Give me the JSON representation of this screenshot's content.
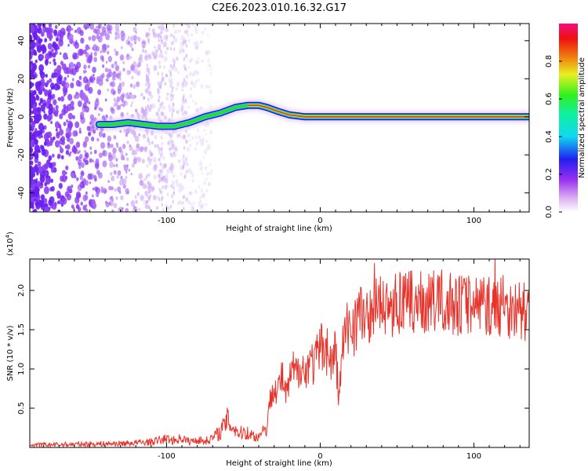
{
  "title": "C2E6.2023.010.16.32.G17",
  "colors": {
    "snr_line": "#e8332a",
    "scatter": "#7a2cf0",
    "ridge_low": "#1a1ae6",
    "ridge_mid": "#2ed82e",
    "ridge_high": "#f02a1e"
  },
  "chart_data": [
    {
      "type": "heatmap",
      "xlabel": "Height of straight line (km)",
      "ylabel": "Frequency (Hz)",
      "xlim": [
        -189,
        136
      ],
      "ylim": [
        -50,
        49
      ],
      "xticks": [
        -100,
        0,
        100
      ],
      "xtick_labels": [
        "-100",
        "0",
        "100"
      ],
      "yticks": [
        -40,
        -20,
        0,
        20,
        40
      ],
      "ytick_labels": [
        "-40",
        "-20",
        "0",
        "20",
        "40"
      ],
      "colorbar": {
        "label": "Normalized spectral amplitude",
        "range": [
          0,
          1
        ],
        "ticks": [
          0.0,
          0.2,
          0.4,
          0.6,
          0.8
        ],
        "tick_labels": [
          "0.0",
          "0.2",
          "0.4",
          "0.6",
          "0.8"
        ],
        "colormap": "rainbow (white-magenta-blue-cyan-green-yellow-red-pink)"
      },
      "ridge": {
        "x": [
          -144,
          -135,
          -125,
          -115,
          -105,
          -95,
          -85,
          -75,
          -65,
          -55,
          -47,
          -40,
          -35,
          -28,
          -20,
          -10,
          0,
          20,
          40,
          60,
          80,
          100,
          120,
          136
        ],
        "y": [
          -4,
          -4,
          -3,
          -4,
          -5,
          -5,
          -3,
          0,
          2,
          5,
          6,
          6,
          5,
          3,
          1,
          0,
          0,
          0,
          0,
          0,
          0,
          0,
          0,
          0
        ]
      },
      "scatter_noise_region": [
        -189,
        -80
      ]
    },
    {
      "type": "line",
      "xlabel": "Height of straight line (km)",
      "ylabel": "SNR (10 * v/v)",
      "y_multiplier": "(x10^4)",
      "xlim": [
        -189,
        136
      ],
      "ylim": [
        0,
        24000
      ],
      "xticks": [
        -100,
        0,
        100
      ],
      "xtick_labels": [
        "-100",
        "0",
        "100"
      ],
      "yticks": [
        5000,
        10000,
        15000,
        20000
      ],
      "ytick_labels": [
        "0.5",
        "1.0",
        "1.5",
        "2.0"
      ],
      "series": [
        {
          "x": [
            -189,
            -160,
            -130,
            -110,
            -100,
            -95,
            -90,
            -85,
            -80,
            -75,
            -70,
            -65,
            -60,
            -58,
            -55,
            -52,
            -50,
            -45,
            -40,
            -37,
            -35,
            -33,
            -30,
            -28,
            -25,
            -22,
            -20,
            -17,
            -15,
            -12,
            -10,
            -7,
            -5,
            -3,
            0,
            3,
            5,
            8,
            10,
            12,
            15,
            18,
            20,
            25,
            30,
            35,
            40,
            50,
            60,
            70,
            80,
            90,
            100,
            110,
            120,
            130,
            136
          ],
          "y": [
            300,
            400,
            500,
            700,
            1100,
            900,
            1200,
            700,
            1000,
            800,
            1200,
            2000,
            3600,
            2800,
            2300,
            1700,
            2100,
            1600,
            1300,
            2600,
            1900,
            5500,
            8500,
            7000,
            9000,
            6500,
            8500,
            10000,
            9000,
            11500,
            8500,
            12000,
            10500,
            11000,
            12500,
            13500,
            12000,
            10500,
            13000,
            6000,
            13500,
            15000,
            15500,
            17000,
            16500,
            18000,
            18000,
            18200,
            18500,
            18400,
            18700,
            18200,
            18500,
            18000,
            17800,
            17500,
            17000
          ]
        }
      ]
    }
  ]
}
